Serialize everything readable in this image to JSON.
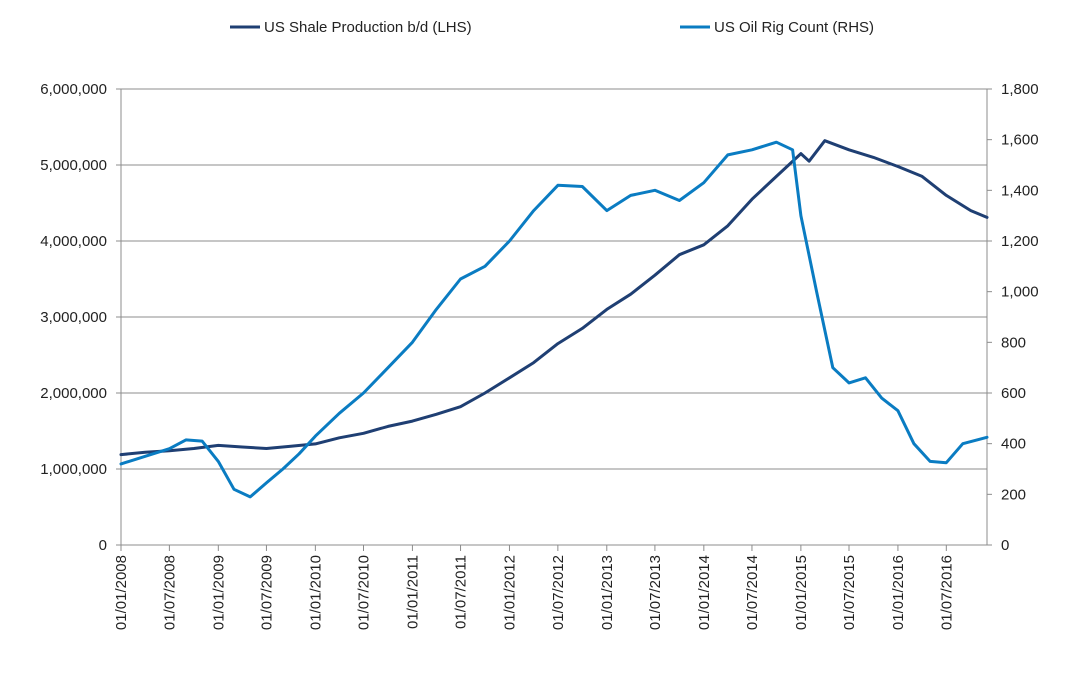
{
  "legend": {
    "placement": "top-center",
    "items": [
      {
        "label": "US Shale Production b/d (LHS)",
        "color": "#1f3f73"
      },
      {
        "label": "US Oil Rig Count (RHS)",
        "color": "#0a7cc2"
      }
    ]
  },
  "chart_data": {
    "type": "line",
    "title": "",
    "xlabel": "",
    "ylabel": "",
    "grid": "horizontal",
    "x_axis": {
      "kind": "date",
      "range": [
        "2008-01-01",
        "2016-12-01"
      ],
      "tick_labels": [
        "01/01/2008",
        "01/07/2008",
        "01/01/2009",
        "01/07/2009",
        "01/01/2010",
        "01/07/2010",
        "01/01/2011",
        "01/07/2011",
        "01/01/2012",
        "01/07/2012",
        "01/01/2013",
        "01/07/2013",
        "01/01/2014",
        "01/07/2014",
        "01/01/2015",
        "01/07/2015",
        "01/01/2016",
        "01/07/2016"
      ]
    },
    "y_left": {
      "range": [
        0,
        6000000
      ],
      "tick_labels": [
        "0",
        "1,000,000",
        "2,000,000",
        "3,000,000",
        "4,000,000",
        "5,000,000",
        "6,000,000"
      ]
    },
    "y_right": {
      "range": [
        0,
        1800
      ],
      "tick_labels": [
        "0",
        "200",
        "400",
        "600",
        "800",
        "1,000",
        "1,200",
        "1,400",
        "1,600",
        "1,800"
      ]
    },
    "series": [
      {
        "name": "US Shale Production b/d (LHS)",
        "axis": "left",
        "color": "#1f3f73",
        "points": [
          [
            "2008-01-01",
            1190000
          ],
          [
            "2008-04-01",
            1220000
          ],
          [
            "2008-07-01",
            1240000
          ],
          [
            "2008-10-01",
            1270000
          ],
          [
            "2009-01-01",
            1310000
          ],
          [
            "2009-04-01",
            1290000
          ],
          [
            "2009-07-01",
            1270000
          ],
          [
            "2009-10-01",
            1300000
          ],
          [
            "2010-01-01",
            1330000
          ],
          [
            "2010-04-01",
            1410000
          ],
          [
            "2010-07-01",
            1470000
          ],
          [
            "2010-10-01",
            1560000
          ],
          [
            "2011-01-01",
            1630000
          ],
          [
            "2011-04-01",
            1720000
          ],
          [
            "2011-07-01",
            1820000
          ],
          [
            "2011-10-01",
            2000000
          ],
          [
            "2012-01-01",
            2200000
          ],
          [
            "2012-04-01",
            2400000
          ],
          [
            "2012-07-01",
            2650000
          ],
          [
            "2012-10-01",
            2850000
          ],
          [
            "2013-01-01",
            3100000
          ],
          [
            "2013-04-01",
            3300000
          ],
          [
            "2013-07-01",
            3550000
          ],
          [
            "2013-10-01",
            3820000
          ],
          [
            "2014-01-01",
            3950000
          ],
          [
            "2014-04-01",
            4200000
          ],
          [
            "2014-07-01",
            4550000
          ],
          [
            "2014-10-01",
            4850000
          ],
          [
            "2015-01-01",
            5150000
          ],
          [
            "2015-02-01",
            5050000
          ],
          [
            "2015-04-01",
            5320000
          ],
          [
            "2015-07-01",
            5200000
          ],
          [
            "2015-10-01",
            5100000
          ],
          [
            "2016-01-01",
            4980000
          ],
          [
            "2016-04-01",
            4850000
          ],
          [
            "2016-07-01",
            4600000
          ],
          [
            "2016-10-01",
            4400000
          ],
          [
            "2016-12-01",
            4310000
          ]
        ]
      },
      {
        "name": "US Oil Rig Count (RHS)",
        "axis": "right",
        "color": "#0a7cc2",
        "points": [
          [
            "2008-01-01",
            320
          ],
          [
            "2008-04-01",
            350
          ],
          [
            "2008-07-01",
            380
          ],
          [
            "2008-09-01",
            415
          ],
          [
            "2008-11-01",
            410
          ],
          [
            "2009-01-01",
            330
          ],
          [
            "2009-03-01",
            220
          ],
          [
            "2009-05-01",
            190
          ],
          [
            "2009-07-01",
            245
          ],
          [
            "2009-09-01",
            300
          ],
          [
            "2009-11-01",
            360
          ],
          [
            "2010-01-01",
            430
          ],
          [
            "2010-04-01",
            520
          ],
          [
            "2010-07-01",
            600
          ],
          [
            "2010-10-01",
            700
          ],
          [
            "2011-01-01",
            800
          ],
          [
            "2011-04-01",
            930
          ],
          [
            "2011-07-01",
            1050
          ],
          [
            "2011-10-01",
            1100
          ],
          [
            "2012-01-01",
            1200
          ],
          [
            "2012-04-01",
            1320
          ],
          [
            "2012-07-01",
            1420
          ],
          [
            "2012-10-01",
            1415
          ],
          [
            "2013-01-01",
            1320
          ],
          [
            "2013-04-01",
            1380
          ],
          [
            "2013-07-01",
            1400
          ],
          [
            "2013-10-01",
            1360
          ],
          [
            "2014-01-01",
            1430
          ],
          [
            "2014-04-01",
            1540
          ],
          [
            "2014-07-01",
            1560
          ],
          [
            "2014-10-01",
            1590
          ],
          [
            "2014-12-01",
            1560
          ],
          [
            "2015-01-01",
            1300
          ],
          [
            "2015-03-01",
            1000
          ],
          [
            "2015-05-01",
            700
          ],
          [
            "2015-07-01",
            640
          ],
          [
            "2015-09-01",
            660
          ],
          [
            "2015-11-01",
            580
          ],
          [
            "2016-01-01",
            530
          ],
          [
            "2016-03-01",
            400
          ],
          [
            "2016-05-01",
            330
          ],
          [
            "2016-07-01",
            325
          ],
          [
            "2016-09-01",
            400
          ],
          [
            "2016-12-01",
            425
          ]
        ]
      }
    ]
  }
}
